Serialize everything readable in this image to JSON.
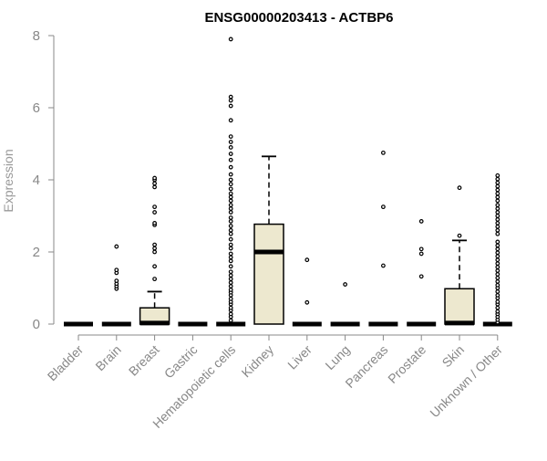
{
  "chart_data": {
    "type": "box",
    "title": "ENSG00000203413 - ACTBP6",
    "xlabel": "",
    "ylabel": "Expression",
    "ylim": [
      0,
      8
    ],
    "yticks": [
      0,
      2,
      4,
      6,
      8
    ],
    "grid": false,
    "box_fill": "#ede8cf",
    "stroke_color": "#000000",
    "axis_color": "#888888",
    "categories": [
      "Bladder",
      "Brain",
      "Breast",
      "Gastric",
      "Hematopoietic cells",
      "Kidney",
      "Liver",
      "Lung",
      "Pancreas",
      "Prostate",
      "Skin",
      "Unknown / Other"
    ],
    "boxes": [
      {
        "category": "Bladder",
        "q1": 0,
        "median": 0,
        "q3": 0,
        "whisker_low": 0,
        "whisker_high": 0,
        "outliers": []
      },
      {
        "category": "Brain",
        "q1": 0,
        "median": 0,
        "q3": 0,
        "whisker_low": 0,
        "whisker_high": 0,
        "outliers": [
          0.98,
          1.05,
          1.12,
          1.2,
          1.42,
          1.5,
          2.15
        ]
      },
      {
        "category": "Breast",
        "q1": 0,
        "median": 0.03,
        "q3": 0.45,
        "whisker_low": 0,
        "whisker_high": 0.9,
        "outliers": [
          1.25,
          1.6,
          2.0,
          2.1,
          2.2,
          2.75,
          2.8,
          3.1,
          3.25,
          3.8,
          3.9,
          4.0,
          4.05
        ]
      },
      {
        "category": "Gastric",
        "q1": 0,
        "median": 0,
        "q3": 0,
        "whisker_low": 0,
        "whisker_high": 0,
        "outliers": []
      },
      {
        "category": "Hematopoietic cells",
        "q1": 0,
        "median": 0,
        "q3": 0,
        "whisker_low": 0,
        "whisker_high": 0,
        "outliers": [
          0.1,
          0.2,
          0.28,
          0.38,
          0.45,
          0.55,
          0.62,
          0.7,
          0.8,
          0.88,
          0.95,
          1.05,
          1.15,
          1.25,
          1.35,
          1.45,
          1.6,
          1.75,
          1.85,
          1.95,
          2.1,
          2.2,
          2.35,
          2.5,
          2.6,
          2.72,
          2.85,
          2.95,
          3.1,
          3.2,
          3.3,
          3.42,
          3.52,
          3.62,
          3.75,
          3.88,
          4.0,
          4.15,
          4.35,
          4.55,
          4.72,
          4.9,
          5.05,
          5.2,
          5.65,
          6.05,
          6.2,
          6.3,
          7.9
        ]
      },
      {
        "category": "Kidney",
        "q1": 0,
        "median": 2.0,
        "q3": 2.77,
        "whisker_low": 0,
        "whisker_high": 4.65,
        "outliers": []
      },
      {
        "category": "Liver",
        "q1": 0,
        "median": 0,
        "q3": 0,
        "whisker_low": 0,
        "whisker_high": 0,
        "outliers": [
          0.6,
          1.78
        ]
      },
      {
        "category": "Lung",
        "q1": 0,
        "median": 0,
        "q3": 0,
        "whisker_low": 0,
        "whisker_high": 0,
        "outliers": [
          1.1
        ]
      },
      {
        "category": "Pancreas",
        "q1": 0,
        "median": 0,
        "q3": 0,
        "whisker_low": 0,
        "whisker_high": 0,
        "outliers": [
          1.62,
          3.25,
          4.75
        ]
      },
      {
        "category": "Prostate",
        "q1": 0,
        "median": 0,
        "q3": 0,
        "whisker_low": 0,
        "whisker_high": 0,
        "outliers": [
          1.32,
          1.95,
          2.08,
          2.85
        ]
      },
      {
        "category": "Skin",
        "q1": 0,
        "median": 0.03,
        "q3": 0.98,
        "whisker_low": 0,
        "whisker_high": 2.32,
        "outliers": [
          2.45,
          3.78
        ]
      },
      {
        "category": "Unknown / Other",
        "q1": 0,
        "median": 0,
        "q3": 0,
        "whisker_low": 0,
        "whisker_high": 0,
        "outliers": [
          0.05,
          0.12,
          0.2,
          0.28,
          0.35,
          0.45,
          0.55,
          0.62,
          0.72,
          0.8,
          0.9,
          1.0,
          1.08,
          1.18,
          1.28,
          1.38,
          1.48,
          1.58,
          1.68,
          1.78,
          1.88,
          1.98,
          2.08,
          2.18,
          2.28,
          2.5,
          2.6,
          2.7,
          2.8,
          2.9,
          3.0,
          3.1,
          3.2,
          3.3,
          3.42,
          3.52,
          3.62,
          3.72,
          3.82,
          3.92,
          4.02,
          4.12
        ]
      }
    ]
  }
}
